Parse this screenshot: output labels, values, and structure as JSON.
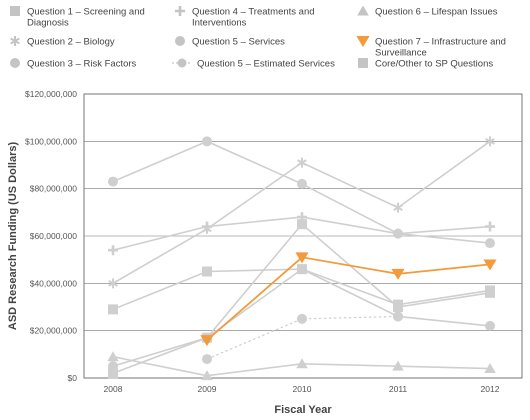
{
  "chart_data": {
    "type": "line",
    "title": "",
    "xlabel": "Fiscal Year",
    "ylabel": "ASD Research Funding (US Dollars)",
    "x": [
      2008,
      2009,
      2010,
      2011,
      2012
    ],
    "ylim": [
      0,
      120000000
    ],
    "yticks": [
      0,
      20000000,
      40000000,
      60000000,
      80000000,
      100000000,
      120000000
    ],
    "ytick_labels": [
      "$0",
      "$20,000,000",
      "$40,000,000",
      "$60,000,000",
      "$80,000,000",
      "$100,000,000",
      "$120,000,000"
    ],
    "grid": "horizontal",
    "legend_position": "top",
    "series": [
      {
        "name": "Question 1 – Screening and Diagnosis",
        "marker": "square",
        "color": "#cfcfcf",
        "dashed": false,
        "highlight": false,
        "values": [
          2000000,
          17000000,
          65000000,
          30000000,
          36000000
        ]
      },
      {
        "name": "Question 2 – Biology",
        "marker": "asterisk",
        "color": "#cfcfcf",
        "dashed": false,
        "highlight": false,
        "values": [
          40000000,
          63000000,
          91000000,
          72000000,
          100000000
        ]
      },
      {
        "name": "Question 3 – Risk Factors",
        "marker": "circle",
        "color": "#cfcfcf",
        "dashed": false,
        "highlight": false,
        "values": [
          83000000,
          100000000,
          82000000,
          61000000,
          57000000
        ]
      },
      {
        "name": "Question 4 – Treatments and Interventions",
        "marker": "plus",
        "color": "#cfcfcf",
        "dashed": false,
        "highlight": false,
        "values": [
          54000000,
          64000000,
          68000000,
          61000000,
          64000000
        ]
      },
      {
        "name": "Question 5 – Services",
        "marker": "circle",
        "color": "#cfcfcf",
        "dashed": false,
        "highlight": false,
        "values": [
          5000000,
          17000000,
          46000000,
          26000000,
          22000000
        ]
      },
      {
        "name": "Question 5 – Estimated Services",
        "marker": "circle",
        "color": "#cfcfcf",
        "dashed": true,
        "highlight": false,
        "values": [
          null,
          8000000,
          25000000,
          26000000,
          null
        ]
      },
      {
        "name": "Question 6 – Lifespan Issues",
        "marker": "triangle",
        "color": "#cfcfcf",
        "dashed": false,
        "highlight": false,
        "values": [
          9000000,
          1000000,
          6000000,
          5000000,
          4000000
        ]
      },
      {
        "name": "Question 7 – Infrastructure and Surveillance",
        "marker": "triangle-down",
        "color": "#f39a3b",
        "dashed": false,
        "highlight": true,
        "values": [
          null,
          16000000,
          51000000,
          44000000,
          48000000
        ]
      },
      {
        "name": "Core/Other to SP Questions",
        "marker": "square",
        "color": "#cfcfcf",
        "dashed": false,
        "highlight": false,
        "values": [
          29000000,
          45000000,
          46000000,
          31000000,
          37000000
        ]
      }
    ]
  },
  "legend": [
    {
      "marker": "square",
      "color": "#c4c4c4",
      "dashed": false,
      "lines": [
        "Question 1 – Screening and",
        "Diagnosis"
      ]
    },
    {
      "marker": "plus",
      "color": "#c4c4c4",
      "dashed": false,
      "lines": [
        "Question 4 – Treatments and",
        "Interventions"
      ]
    },
    {
      "marker": "triangle",
      "color": "#c4c4c4",
      "dashed": false,
      "lines": [
        "Question 6 – Lifespan Issues"
      ]
    },
    {
      "marker": "asterisk",
      "color": "#c4c4c4",
      "dashed": false,
      "lines": [
        "Question 2 – Biology"
      ]
    },
    {
      "marker": "circle",
      "color": "#c4c4c4",
      "dashed": false,
      "lines": [
        "Question 5 – Services"
      ]
    },
    {
      "marker": "triangle-down",
      "color": "#f39a3b",
      "dashed": false,
      "lines": [
        "Question 7 – Infrastructure and",
        "Surveillance"
      ]
    },
    {
      "marker": "circle",
      "color": "#c4c4c4",
      "dashed": false,
      "lines": [
        "Question 3 – Risk Factors"
      ]
    },
    {
      "marker": "circle",
      "color": "#c4c4c4",
      "dashed": true,
      "lines": [
        "Question 5 – Estimated Services"
      ]
    },
    {
      "marker": "square",
      "color": "#c4c4c4",
      "dashed": false,
      "lines": [
        "Core/Other to SP Questions"
      ]
    }
  ]
}
